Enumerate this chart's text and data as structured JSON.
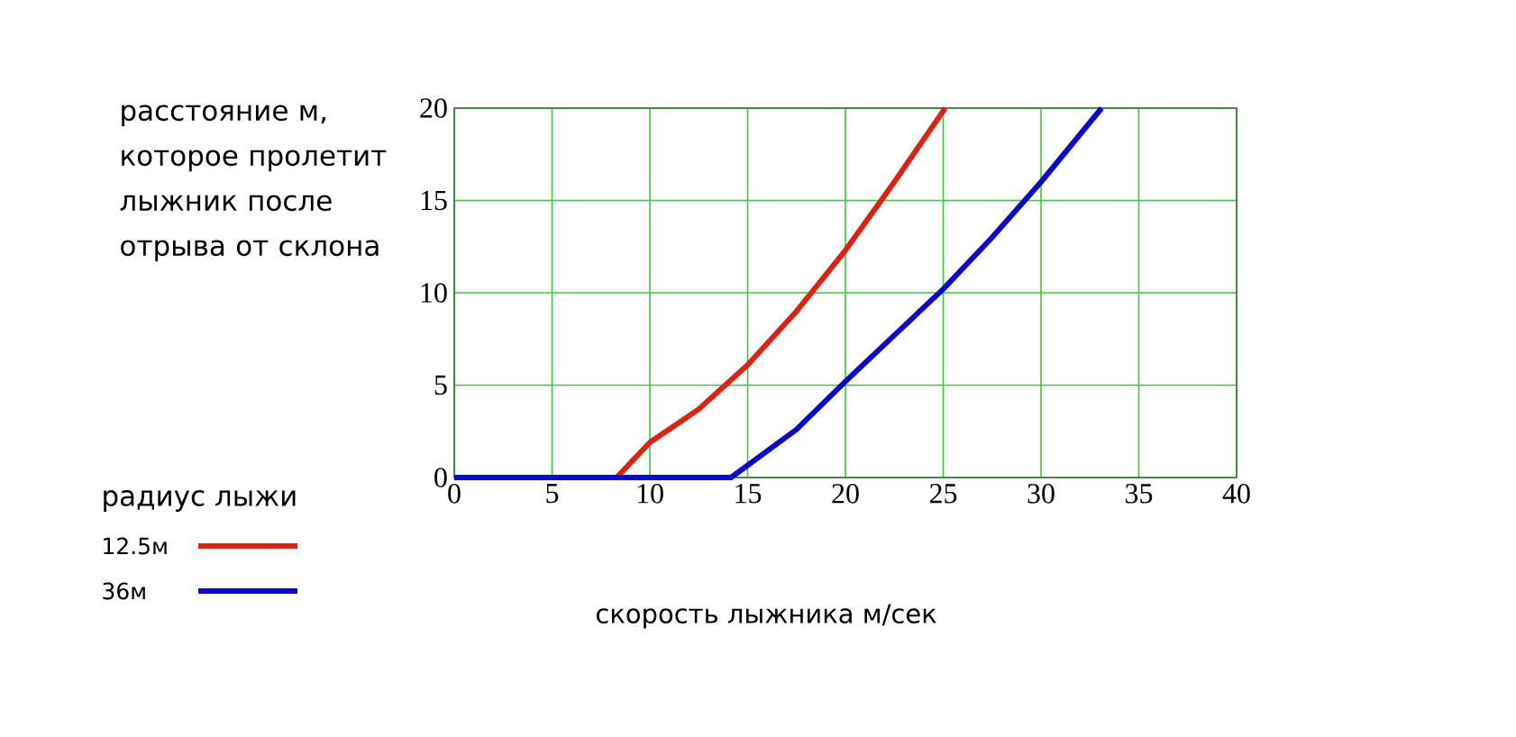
{
  "chart_data": {
    "type": "line",
    "ylabel": "расстояние м, которое пролетит лыжник после отрыва от склона",
    "xlabel": "скорость лыжника м/сек",
    "legend_title": "радиус лыжи",
    "legend": "left",
    "grid": true,
    "xlim": [
      0,
      40
    ],
    "ylim": [
      0,
      20
    ],
    "xticks": [
      0,
      5,
      10,
      15,
      20,
      25,
      30,
      35,
      40
    ],
    "yticks": [
      0,
      5,
      10,
      15,
      20
    ],
    "series": [
      {
        "name": "12.5м",
        "color": "#dd2211",
        "x": [
          8.3,
          10,
          12.5,
          15,
          17.5,
          20,
          22.5,
          25.1
        ],
        "values": [
          0,
          1.9,
          3.7,
          6.1,
          9.0,
          12.3,
          16.0,
          20
        ]
      },
      {
        "name": "36м",
        "color": "#0a0ac8",
        "x": [
          0,
          14.15,
          17.5,
          20,
          22.5,
          25,
          27.5,
          30,
          33.1
        ],
        "values": [
          0,
          0,
          2.6,
          5.2,
          7.7,
          10.2,
          13.0,
          16.0,
          20
        ]
      }
    ]
  }
}
